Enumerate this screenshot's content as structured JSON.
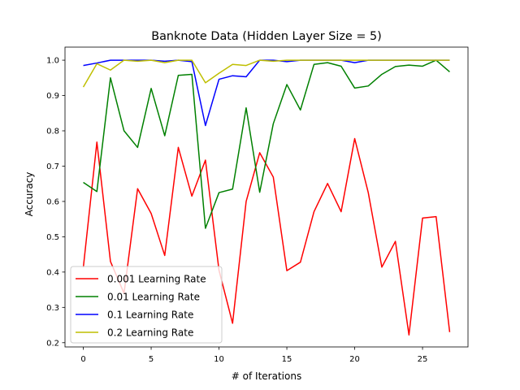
{
  "chart_data": {
    "type": "line",
    "title": "Banknote Data (Hidden Layer Size = 5)",
    "xlabel": "# of Iterations",
    "ylabel": "Accuracy",
    "xlim": [
      -1.35,
      28.35
    ],
    "ylim": [
      0.188,
      1.037
    ],
    "xticks": [
      0,
      5,
      10,
      15,
      20,
      25
    ],
    "yticks": [
      0.2,
      0.3,
      0.4,
      0.5,
      0.6,
      0.7,
      0.8,
      0.9,
      1.0
    ],
    "ytick_labels": [
      "0.2",
      "0.3",
      "0.4",
      "0.5",
      "0.6",
      "0.7",
      "0.8",
      "0.9",
      "1.0"
    ],
    "legend_position": "lower-left",
    "grid": false,
    "x": [
      0,
      1,
      2,
      3,
      4,
      5,
      6,
      7,
      8,
      9,
      10,
      11,
      12,
      13,
      14,
      15,
      16,
      17,
      18,
      19,
      20,
      21,
      22,
      23,
      24,
      25,
      26,
      27
    ],
    "series": [
      {
        "name": "0.001 Learning Rate",
        "color": "#ff0000",
        "values": [
          0.413,
          0.768,
          0.43,
          0.34,
          0.636,
          0.566,
          0.447,
          0.753,
          0.615,
          0.717,
          0.405,
          0.255,
          0.6,
          0.738,
          0.669,
          0.404,
          0.428,
          0.571,
          0.651,
          0.571,
          0.778,
          0.625,
          0.414,
          0.487,
          0.222,
          0.553,
          0.557,
          0.23
        ]
      },
      {
        "name": "0.01 Learning Rate",
        "color": "#008000",
        "values": [
          0.654,
          0.628,
          0.95,
          0.8,
          0.753,
          0.92,
          0.786,
          0.957,
          0.96,
          0.524,
          0.625,
          0.635,
          0.865,
          0.626,
          0.82,
          0.931,
          0.859,
          0.988,
          0.993,
          0.983,
          0.921,
          0.927,
          0.96,
          0.982,
          0.986,
          0.983,
          1.0,
          0.967
        ]
      },
      {
        "name": "0.1 Learning Rate",
        "color": "#0000ff",
        "values": [
          0.985,
          0.992,
          1.0,
          1.0,
          1.0,
          1.0,
          0.997,
          1.0,
          0.996,
          0.815,
          0.946,
          0.956,
          0.953,
          1.0,
          1.0,
          0.996,
          1.0,
          1.0,
          1.0,
          1.0,
          0.993,
          1.0,
          1.0,
          1.0,
          1.0,
          1.0,
          1.0,
          1.0
        ]
      },
      {
        "name": "0.2 Learning Rate",
        "color": "#bfbf00",
        "values": [
          0.924,
          0.99,
          0.972,
          1.0,
          0.997,
          1.0,
          0.993,
          1.0,
          1.0,
          0.936,
          0.963,
          0.988,
          0.985,
          1.0,
          0.997,
          1.0,
          1.0,
          1.0,
          1.0,
          1.0,
          1.0,
          1.0,
          1.0,
          1.0,
          1.0,
          1.0,
          1.0,
          1.0
        ]
      }
    ]
  }
}
